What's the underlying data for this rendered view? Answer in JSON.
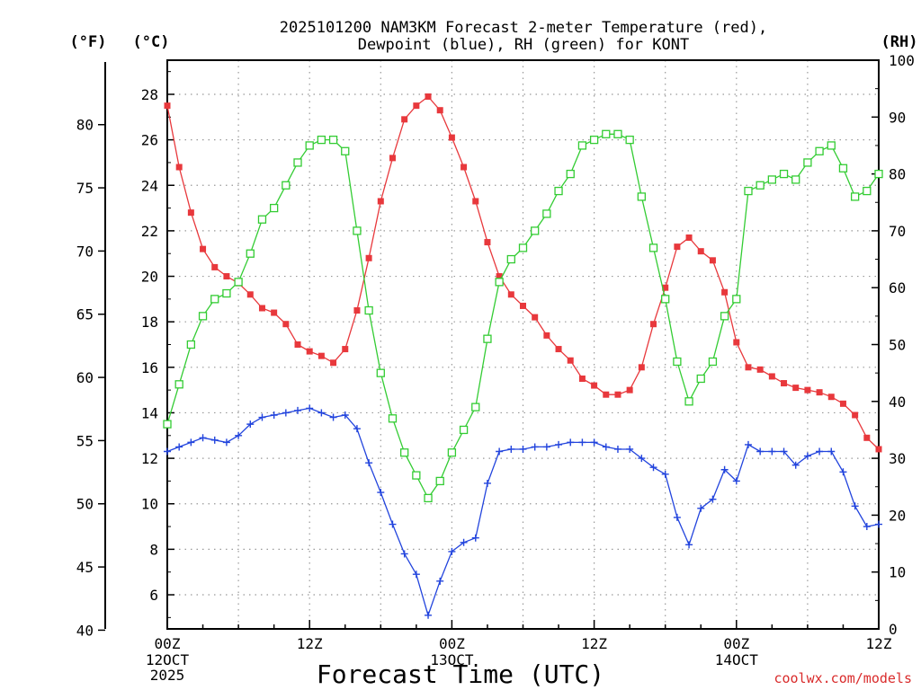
{
  "chart_data": {
    "type": "line",
    "title_line1": "2025101200 NAM3KM Forecast 2-meter Temperature (red),",
    "title_line2": "Dewpoint (blue), RH (green) for KONT",
    "xlabel": "Forecast Time (UTC)",
    "credit": "coolwx.com/models",
    "unit_f": "(°F)",
    "unit_c": "(°C)",
    "unit_rh": "(RH)",
    "xlim_hours": [
      0,
      60
    ],
    "ylim_c": [
      4.5,
      29.5
    ],
    "ylim_rh": [
      0,
      100
    ],
    "c_ticks": [
      6,
      8,
      10,
      12,
      14,
      16,
      18,
      20,
      22,
      24,
      26,
      28
    ],
    "f_ticks": [
      40,
      45,
      50,
      55,
      60,
      65,
      70,
      75,
      80
    ],
    "rh_ticks": [
      0,
      10,
      20,
      30,
      40,
      50,
      60,
      70,
      80,
      90,
      100
    ],
    "x_ticks": [
      {
        "hour": 0,
        "label": "00Z",
        "sub1": "12OCT",
        "sub2": "2025"
      },
      {
        "hour": 12,
        "label": "12Z",
        "sub1": "",
        "sub2": ""
      },
      {
        "hour": 24,
        "label": "00Z",
        "sub1": "13OCT",
        "sub2": ""
      },
      {
        "hour": 36,
        "label": "12Z",
        "sub1": "",
        "sub2": ""
      },
      {
        "hour": 48,
        "label": "00Z",
        "sub1": "14OCT",
        "sub2": ""
      },
      {
        "hour": 60,
        "label": "12Z",
        "sub1": "",
        "sub2": ""
      }
    ],
    "hours": [
      0,
      1,
      2,
      3,
      4,
      5,
      6,
      7,
      8,
      9,
      10,
      11,
      12,
      13,
      14,
      15,
      16,
      17,
      18,
      19,
      20,
      21,
      22,
      23,
      24,
      25,
      26,
      27,
      28,
      29,
      30,
      31,
      32,
      33,
      34,
      35,
      36,
      37,
      38,
      39,
      40,
      41,
      42,
      43,
      44,
      45,
      46,
      47,
      48,
      49,
      50,
      51,
      52,
      53,
      54,
      55,
      56,
      57,
      58,
      59,
      60
    ],
    "series": [
      {
        "name": "Temperature",
        "unit": "C",
        "color": "#e8383c",
        "marker": "filled-square",
        "values": [
          27.5,
          24.8,
          22.8,
          21.2,
          20.4,
          20.0,
          19.7,
          19.2,
          18.6,
          18.4,
          17.9,
          17.0,
          16.7,
          16.5,
          16.2,
          16.8,
          18.5,
          20.8,
          23.3,
          25.2,
          26.9,
          27.5,
          27.9,
          27.3,
          26.1,
          24.8,
          23.3,
          21.5,
          20.0,
          19.2,
          18.7,
          18.2,
          17.4,
          16.8,
          16.3,
          15.5,
          15.2,
          14.8,
          14.8,
          15.0,
          16.0,
          17.9,
          19.5,
          21.3,
          21.7,
          21.1,
          20.7,
          19.3,
          17.1,
          16.0,
          15.9,
          15.6,
          15.3,
          15.1,
          15.0,
          14.9,
          14.7,
          14.4,
          13.9,
          12.9,
          12.4
        ]
      },
      {
        "name": "Dewpoint",
        "unit": "C",
        "color": "#2244dd",
        "marker": "plus",
        "values": [
          12.3,
          12.5,
          12.7,
          12.9,
          12.8,
          12.7,
          13.0,
          13.5,
          13.8,
          13.9,
          14.0,
          14.1,
          14.2,
          14.0,
          13.8,
          13.9,
          13.3,
          11.8,
          10.5,
          9.1,
          7.8,
          6.9,
          5.1,
          6.6,
          7.9,
          8.3,
          8.5,
          10.9,
          12.3,
          12.4,
          12.4,
          12.5,
          12.5,
          12.6,
          12.7,
          12.7,
          12.7,
          12.5,
          12.4,
          12.4,
          12.0,
          11.6,
          11.3,
          9.4,
          8.2,
          9.8,
          10.2,
          11.5,
          11.0,
          12.6,
          12.3,
          12.3,
          12.3,
          11.7,
          12.1,
          12.3,
          12.3,
          11.4,
          9.9,
          9.0,
          9.1
        ]
      },
      {
        "name": "RH",
        "unit": "%",
        "color": "#33cc33",
        "marker": "open-square",
        "values": [
          36,
          43,
          50,
          55,
          58,
          59,
          61,
          66,
          72,
          74,
          78,
          82,
          85,
          86,
          86,
          84,
          70,
          56,
          45,
          37,
          31,
          27,
          23,
          26,
          31,
          35,
          39,
          51,
          61,
          65,
          67,
          70,
          73,
          77,
          80,
          85,
          86,
          87,
          87,
          86,
          76,
          67,
          58,
          47,
          40,
          44,
          47,
          55,
          58,
          77,
          78,
          79,
          80,
          79,
          82,
          84,
          85,
          81,
          76,
          77,
          80
        ]
      }
    ]
  }
}
